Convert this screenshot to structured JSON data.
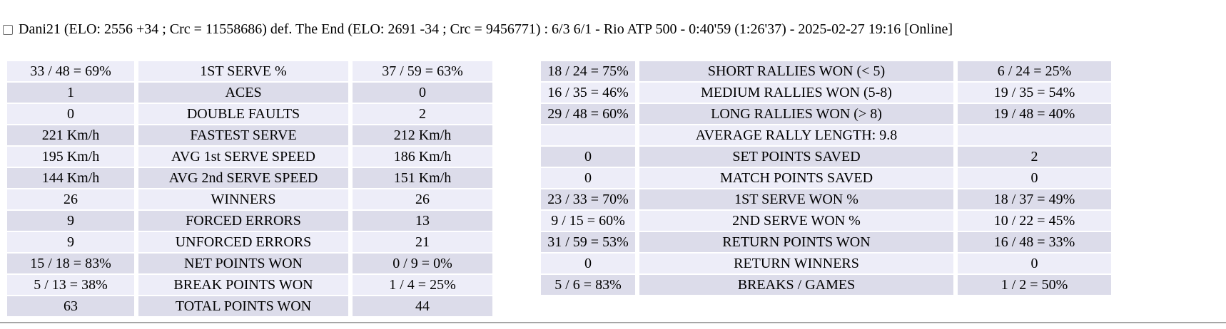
{
  "match_header": {
    "checkbox_checked": false,
    "title": "Dani21 (ELO: 2556 +34 ; Crc = 11558686) def. The End (ELO: 2691 -34 ; Crc = 9456771) : 6/3 6/1 - Rio ATP 500 - 0:40'59 (1:26'37) - 2025-02-27 19:16 [Online]"
  },
  "colors": {
    "row_light": "#ededf8",
    "row_dark": "#dcdcea",
    "divider": "#a6a6a6"
  },
  "serve_stats": {
    "rows": [
      {
        "player1": "33 / 48 = 69%",
        "stat": "1ST SERVE %",
        "player2": "37 / 59 = 63%"
      },
      {
        "player1": "1",
        "stat": "ACES",
        "player2": "0"
      },
      {
        "player1": "0",
        "stat": "DOUBLE FAULTS",
        "player2": "2"
      },
      {
        "player1": "221 Km/h",
        "stat": "FASTEST SERVE",
        "player2": "212 Km/h"
      },
      {
        "player1": "195 Km/h",
        "stat": "AVG 1st SERVE SPEED",
        "player2": "186 Km/h"
      },
      {
        "player1": "144 Km/h",
        "stat": "AVG 2nd SERVE SPEED",
        "player2": "151 Km/h"
      },
      {
        "player1": "26",
        "stat": "WINNERS",
        "player2": "26"
      },
      {
        "player1": "9",
        "stat": "FORCED ERRORS",
        "player2": "13"
      },
      {
        "player1": "9",
        "stat": "UNFORCED ERRORS",
        "player2": "21"
      },
      {
        "player1": "15 / 18 = 83%",
        "stat": "NET POINTS WON",
        "player2": "0 / 9 = 0%"
      },
      {
        "player1": "5 / 13 = 38%",
        "stat": "BREAK POINTS WON",
        "player2": "1 / 4 = 25%"
      },
      {
        "player1": "63",
        "stat": "TOTAL POINTS WON",
        "player2": "44"
      }
    ]
  },
  "rally_stats": {
    "rows": [
      {
        "player1": "18 / 24 = 75%",
        "stat": "SHORT RALLIES WON (< 5)",
        "player2": "6 / 24 = 25%"
      },
      {
        "player1": "16 / 35 = 46%",
        "stat": "MEDIUM RALLIES WON (5-8)",
        "player2": "19 / 35 = 54%"
      },
      {
        "player1": "29 / 48 = 60%",
        "stat": "LONG RALLIES WON (> 8)",
        "player2": "19 / 48 = 40%"
      },
      {
        "player1": "",
        "stat": "AVERAGE RALLY LENGTH: 9.8",
        "player2": ""
      },
      {
        "player1": "0",
        "stat": "SET POINTS SAVED",
        "player2": "2"
      },
      {
        "player1": "0",
        "stat": "MATCH POINTS SAVED",
        "player2": "0"
      },
      {
        "player1": "23 / 33 = 70%",
        "stat": "1ST SERVE WON %",
        "player2": "18 / 37 = 49%"
      },
      {
        "player1": "9 / 15 = 60%",
        "stat": "2ND SERVE WON %",
        "player2": "10 / 22 = 45%"
      },
      {
        "player1": "31 / 59 = 53%",
        "stat": "RETURN POINTS WON",
        "player2": "16 / 48 = 33%"
      },
      {
        "player1": "0",
        "stat": "RETURN WINNERS",
        "player2": "0"
      },
      {
        "player1": "5 / 6 = 83%",
        "stat": "BREAKS / GAMES",
        "player2": "1 / 2 = 50%"
      }
    ]
  }
}
